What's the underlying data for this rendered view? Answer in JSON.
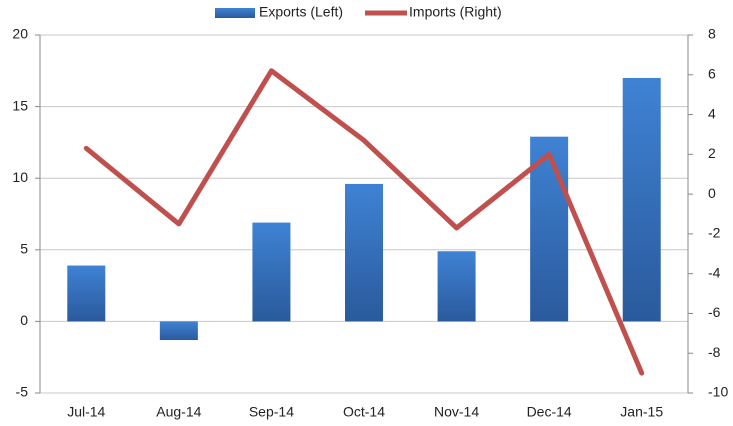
{
  "chart_data": {
    "type": "bar",
    "categories": [
      "Jul-14",
      "Aug-14",
      "Sep-14",
      "Oct-14",
      "Nov-14",
      "Dec-14",
      "Jan-15"
    ],
    "series": [
      {
        "name": "Exports (Left)",
        "color": "#3a78c4",
        "values": [
          3.9,
          -1.3,
          6.9,
          9.6,
          4.9,
          12.9,
          17.0
        ]
      },
      {
        "name": "Imports (Right)",
        "color": "#c0504d",
        "type": "line",
        "axis": "y2",
        "values": [
          2.3,
          -1.5,
          6.2,
          2.7,
          -1.7,
          2.0,
          -9.0
        ]
      }
    ],
    "ylim": [
      -5,
      20
    ],
    "yticks": [
      -5,
      0,
      5,
      10,
      15,
      20
    ],
    "y2lim": [
      -10,
      8
    ],
    "y2ticks": [
      -10,
      -8,
      -6,
      -4,
      -2,
      0,
      2,
      4,
      6,
      8
    ],
    "grid": true,
    "legend": "top"
  }
}
